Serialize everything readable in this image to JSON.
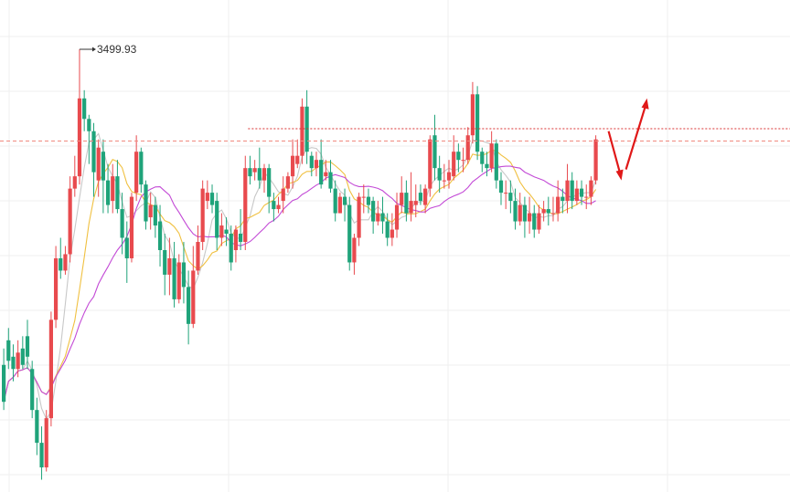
{
  "colors": {
    "up": "#e84a4e",
    "down": "#1fa37a",
    "ma_fast": "#c8c8c8",
    "ma_mid": "#f0c040",
    "ma_slow": "#c34ad6",
    "grid": "#efefef",
    "resistance": "#d93030",
    "current_line": "#f08a80",
    "arrow": "#e01818"
  },
  "chart_data": {
    "type": "candlestick",
    "title": "",
    "xlabel": "",
    "ylabel": "",
    "ylim": [
      2960,
      3560
    ],
    "grid": true,
    "legend": "none",
    "high_marker": {
      "label": "3499.93",
      "value": 3499.93,
      "index": 16
    },
    "resistance_level": {
      "value": 3403,
      "from_index": 52,
      "to_index": 118
    },
    "current_price_level": 3388,
    "projection_arrows": [
      "down",
      "up"
    ],
    "candles": [
      [
        3115,
        3070,
        3135,
        3060
      ],
      [
        3145,
        3120,
        3160,
        3110
      ],
      [
        3125,
        3110,
        3140,
        3095
      ],
      [
        3110,
        3130,
        3145,
        3100
      ],
      [
        3135,
        3115,
        3150,
        3110
      ],
      [
        3150,
        3125,
        3170,
        3110
      ],
      [
        3110,
        3060,
        3120,
        3050
      ],
      [
        3060,
        3020,
        3075,
        3005
      ],
      [
        3020,
        2990,
        3040,
        2975
      ],
      [
        2990,
        3050,
        3060,
        2985
      ],
      [
        3050,
        3170,
        3180,
        3040
      ],
      [
        3170,
        3245,
        3260,
        3160
      ],
      [
        3245,
        3230,
        3270,
        3220
      ],
      [
        3230,
        3250,
        3260,
        3225
      ],
      [
        3250,
        3330,
        3345,
        3240
      ],
      [
        3330,
        3345,
        3370,
        3320
      ],
      [
        3345,
        3440,
        3500,
        3335
      ],
      [
        3440,
        3415,
        3450,
        3400
      ],
      [
        3415,
        3400,
        3420,
        3360
      ],
      [
        3400,
        3350,
        3410,
        3320
      ],
      [
        3340,
        3380,
        3390,
        3320
      ],
      [
        3375,
        3340,
        3390,
        3300
      ],
      [
        3340,
        3310,
        3360,
        3300
      ],
      [
        3315,
        3345,
        3360,
        3300
      ],
      [
        3345,
        3305,
        3365,
        3300
      ],
      [
        3305,
        3270,
        3325,
        3250
      ],
      [
        3270,
        3245,
        3290,
        3215
      ],
      [
        3245,
        3320,
        3325,
        3240
      ],
      [
        3325,
        3375,
        3395,
        3315
      ],
      [
        3375,
        3335,
        3380,
        3325
      ],
      [
        3335,
        3290,
        3340,
        3280
      ],
      [
        3295,
        3310,
        3325,
        3280
      ],
      [
        3310,
        3285,
        3320,
        3270
      ],
      [
        3290,
        3255,
        3310,
        3235
      ],
      [
        3255,
        3225,
        3275,
        3200
      ],
      [
        3225,
        3245,
        3270,
        3200
      ],
      [
        3245,
        3195,
        3265,
        3185
      ],
      [
        3195,
        3240,
        3250,
        3190
      ],
      [
        3240,
        3210,
        3265,
        3190
      ],
      [
        3210,
        3165,
        3230,
        3140
      ],
      [
        3165,
        3230,
        3260,
        3160
      ],
      [
        3230,
        3265,
        3285,
        3225
      ],
      [
        3265,
        3330,
        3340,
        3255
      ],
      [
        3315,
        3325,
        3340,
        3305
      ],
      [
        3325,
        3310,
        3335,
        3300
      ],
      [
        3315,
        3270,
        3325,
        3255
      ],
      [
        3270,
        3285,
        3300,
        3260
      ],
      [
        3280,
        3275,
        3295,
        3260
      ],
      [
        3275,
        3240,
        3285,
        3230
      ],
      [
        3255,
        3280,
        3285,
        3240
      ],
      [
        3275,
        3265,
        3305,
        3255
      ],
      [
        3265,
        3355,
        3370,
        3255
      ],
      [
        3355,
        3345,
        3370,
        3335
      ],
      [
        3350,
        3355,
        3365,
        3340
      ],
      [
        3355,
        3340,
        3380,
        3330
      ],
      [
        3340,
        3355,
        3360,
        3325
      ],
      [
        3355,
        3320,
        3360,
        3300
      ],
      [
        3315,
        3305,
        3325,
        3290
      ],
      [
        3305,
        3310,
        3320,
        3300
      ],
      [
        3315,
        3330,
        3345,
        3300
      ],
      [
        3330,
        3345,
        3350,
        3325
      ],
      [
        3345,
        3370,
        3390,
        3330
      ],
      [
        3360,
        3370,
        3390,
        3355
      ],
      [
        3370,
        3430,
        3440,
        3360
      ],
      [
        3430,
        3375,
        3450,
        3360
      ],
      [
        3370,
        3355,
        3375,
        3345
      ],
      [
        3355,
        3365,
        3375,
        3345
      ],
      [
        3365,
        3335,
        3390,
        3330
      ],
      [
        3345,
        3350,
        3365,
        3340
      ],
      [
        3350,
        3330,
        3365,
        3325
      ],
      [
        3330,
        3300,
        3340,
        3290
      ],
      [
        3300,
        3320,
        3325,
        3300
      ],
      [
        3320,
        3310,
        3330,
        3290
      ],
      [
        3310,
        3240,
        3320,
        3230
      ],
      [
        3240,
        3270,
        3275,
        3225
      ],
      [
        3270,
        3320,
        3325,
        3260
      ],
      [
        3320,
        3320,
        3335,
        3300
      ],
      [
        3320,
        3310,
        3330,
        3300
      ],
      [
        3315,
        3290,
        3320,
        3275
      ],
      [
        3290,
        3300,
        3315,
        3285
      ],
      [
        3300,
        3290,
        3320,
        3275
      ],
      [
        3290,
        3270,
        3300,
        3260
      ],
      [
        3270,
        3280,
        3300,
        3260
      ],
      [
        3280,
        3310,
        3325,
        3270
      ],
      [
        3310,
        3325,
        3345,
        3300
      ],
      [
        3325,
        3300,
        3340,
        3290
      ],
      [
        3300,
        3315,
        3350,
        3290
      ],
      [
        3310,
        3315,
        3335,
        3295
      ],
      [
        3325,
        3315,
        3335,
        3310
      ],
      [
        3310,
        3330,
        3335,
        3300
      ],
      [
        3330,
        3390,
        3395,
        3320
      ],
      [
        3395,
        3355,
        3420,
        3340
      ],
      [
        3355,
        3340,
        3370,
        3325
      ],
      [
        3340,
        3340,
        3360,
        3330
      ],
      [
        3340,
        3350,
        3365,
        3330
      ],
      [
        3345,
        3375,
        3395,
        3340
      ],
      [
        3375,
        3365,
        3385,
        3350
      ],
      [
        3365,
        3365,
        3380,
        3350
      ],
      [
        3365,
        3395,
        3405,
        3360
      ],
      [
        3395,
        3445,
        3460,
        3385
      ],
      [
        3445,
        3375,
        3455,
        3365
      ],
      [
        3375,
        3360,
        3380,
        3350
      ],
      [
        3360,
        3355,
        3375,
        3345
      ],
      [
        3355,
        3385,
        3400,
        3350
      ],
      [
        3385,
        3340,
        3390,
        3330
      ],
      [
        3340,
        3325,
        3350,
        3310
      ],
      [
        3325,
        3325,
        3340,
        3305
      ],
      [
        3325,
        3315,
        3340,
        3300
      ],
      [
        3315,
        3290,
        3330,
        3280
      ],
      [
        3290,
        3310,
        3325,
        3285
      ],
      [
        3310,
        3290,
        3320,
        3270
      ],
      [
        3290,
        3300,
        3320,
        3275
      ],
      [
        3300,
        3280,
        3310,
        3270
      ],
      [
        3280,
        3300,
        3310,
        3275
      ],
      [
        3300,
        3305,
        3315,
        3290
      ],
      [
        3305,
        3300,
        3320,
        3285
      ],
      [
        3300,
        3300,
        3320,
        3290
      ],
      [
        3300,
        3320,
        3340,
        3290
      ],
      [
        3320,
        3315,
        3330,
        3300
      ],
      [
        3315,
        3340,
        3360,
        3300
      ],
      [
        3340,
        3315,
        3350,
        3305
      ],
      [
        3315,
        3330,
        3340,
        3310
      ],
      [
        3330,
        3320,
        3340,
        3310
      ],
      [
        3320,
        3320,
        3335,
        3305
      ],
      [
        3320,
        3340,
        3345,
        3310
      ],
      [
        3340,
        3390,
        3395,
        3335
      ]
    ]
  }
}
